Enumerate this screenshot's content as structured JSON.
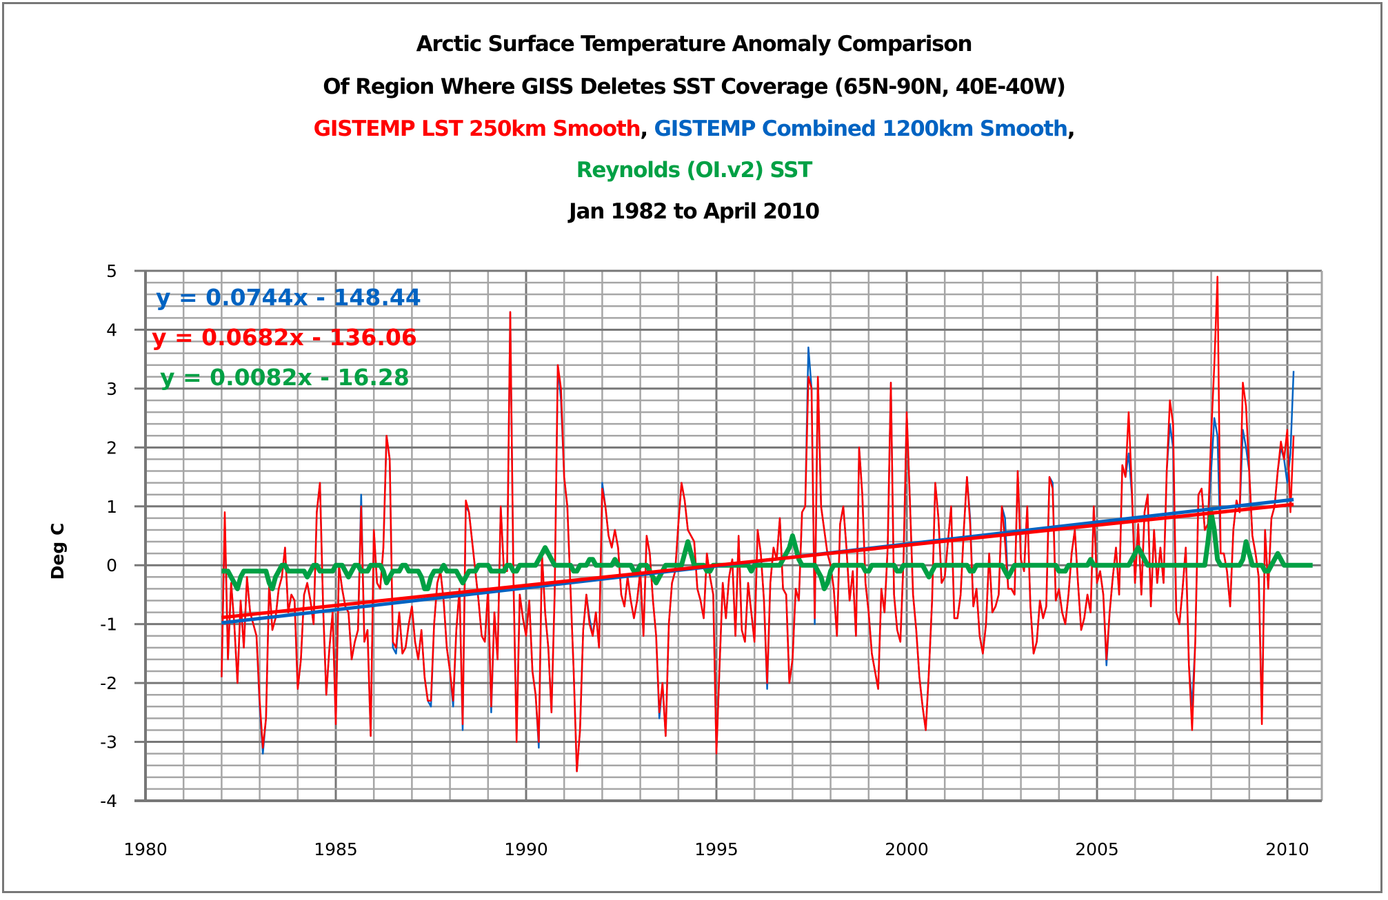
{
  "chart_data": {
    "type": "line",
    "title_lines": [
      {
        "segments": [
          {
            "text": "Arctic Surface Temperature Anomaly Comparison",
            "color": "#000000"
          }
        ]
      },
      {
        "segments": [
          {
            "text": "Of Region Where GISS Deletes SST Coverage (65N-90N, 40E-40W)",
            "color": "#000000"
          }
        ]
      },
      {
        "segments": [
          {
            "text": "GISTEMP LST 250km Smooth",
            "color": "#FF0000"
          },
          {
            "text": ", ",
            "color": "#000000"
          },
          {
            "text": "GISTEMP Combined 1200km Smooth",
            "color": "#0063C2"
          },
          {
            "text": ",",
            "color": "#000000"
          }
        ]
      },
      {
        "segments": [
          {
            "text": "Reynolds (OI.v2) SST",
            "color": "#00A044"
          }
        ]
      },
      {
        "segments": [
          {
            "text": "Jan 1982 to April 2010",
            "color": "#000000"
          }
        ]
      }
    ],
    "xlabel": "",
    "ylabel": "Deg C",
    "xlim": [
      1980,
      2011.2
    ],
    "ylim": [
      -4,
      5
    ],
    "x_ticks": [
      1980,
      1985,
      1990,
      1995,
      2000,
      2005,
      2010
    ],
    "x_tick_labels": [
      "1980",
      "1985",
      "1990",
      "1995",
      "2000",
      "2005",
      "2010"
    ],
    "y_ticks": [
      -4,
      -3,
      -2,
      -1,
      0,
      1,
      2,
      3,
      4,
      5
    ],
    "y_tick_labels": [
      "-4",
      "-3",
      "-2",
      "-1",
      "0",
      "1",
      "2",
      "3",
      "4",
      "5"
    ],
    "grid": true,
    "grid_minor_x_step": 1,
    "grid_minor_y_step": 0.2,
    "legend": "none",
    "x_start": 1982.0,
    "x_step": 0.08333,
    "series": [
      {
        "name": "GISTEMP Combined 1200km Smooth",
        "color": "#0063C2",
        "values": [
          -1.9,
          0.8,
          -1.6,
          -0.3,
          -1.0,
          -2.0,
          -0.6,
          -1.4,
          -0.2,
          -0.8,
          -1.0,
          -1.2,
          -2.4,
          -3.2,
          -2.6,
          -0.3,
          -1.1,
          -0.9,
          -0.4,
          -0.2,
          0.3,
          -0.8,
          -0.5,
          -0.6,
          -2.1,
          -1.6,
          -0.5,
          -0.3,
          -0.6,
          -1.0,
          0.9,
          1.4,
          -0.7,
          -2.2,
          -1.4,
          -0.8,
          -2.7,
          0.0,
          -0.4,
          -0.7,
          -0.8,
          -1.6,
          -1.3,
          -1.1,
          1.2,
          -1.3,
          -1.1,
          -2.9,
          0.6,
          -0.3,
          -0.4,
          0.3,
          2.2,
          1.8,
          -1.4,
          -1.5,
          -0.8,
          -1.5,
          -1.4,
          -1.0,
          -0.7,
          -1.3,
          -1.6,
          -1.1,
          -1.9,
          -2.3,
          -2.4,
          -1.0,
          -0.3,
          -0.1,
          -0.6,
          -1.4,
          -1.8,
          -2.4,
          -1.1,
          -0.4,
          -2.8,
          1.0,
          0.9,
          0.4,
          -0.1,
          -0.6,
          -1.2,
          -1.3,
          -0.4,
          -2.5,
          -0.8,
          -1.6,
          1.0,
          -0.1,
          -0.1,
          4.3,
          -0.2,
          -2.9,
          -0.5,
          -0.9,
          -1.2,
          -0.6,
          -1.8,
          -2.2,
          -3.1,
          0.2,
          -0.8,
          -1.4,
          -2.5,
          -0.5,
          3.4,
          2.8,
          1.5,
          1.0,
          -0.4,
          -1.8,
          -3.5,
          -2.8,
          -1.1,
          -0.5,
          -0.9,
          -1.2,
          -0.8,
          -1.4,
          1.4,
          1.0,
          0.5,
          0.3,
          0.6,
          0.3,
          -0.5,
          -0.7,
          -0.2,
          -0.6,
          -0.9,
          -0.6,
          -0.1,
          -1.2,
          0.5,
          0.2,
          -0.6,
          -1.2,
          -2.6,
          -2.0,
          -2.9,
          -1.0,
          -0.3,
          -0.1,
          0.7,
          1.4,
          1.1,
          0.6,
          0.5,
          0.4,
          -0.4,
          -0.6,
          -0.9,
          0.2,
          -0.2,
          -0.5,
          -3.2,
          -1.7,
          -0.3,
          -0.9,
          -0.2,
          0.1,
          -1.2,
          0.5,
          -1.1,
          -1.3,
          -0.3,
          -0.8,
          -1.3,
          0.6,
          0.2,
          -0.6,
          -2.1,
          -0.3,
          0.3,
          0.1,
          0.8,
          -0.4,
          -0.5,
          -2.0,
          -1.6,
          -0.4,
          -0.6,
          0.9,
          1.0,
          3.7,
          3.0,
          -1.0,
          3.2,
          1.0,
          0.6,
          0.2,
          0.0,
          -0.4,
          -1.2,
          0.7,
          1.0,
          0.3,
          -0.6,
          -0.1,
          -1.2,
          2.0,
          1.2,
          -0.3,
          -0.8,
          -1.5,
          -1.8,
          -2.1,
          -0.4,
          -0.8,
          0.3,
          3.1,
          -0.5,
          -1.1,
          -1.3,
          0.1,
          2.6,
          1.1,
          -0.5,
          -1.1,
          -1.9,
          -2.4,
          -2.8,
          -1.8,
          -0.6,
          1.4,
          0.8,
          -0.3,
          -0.2,
          0.4,
          1.0,
          -0.9,
          -0.9,
          -0.5,
          0.6,
          1.5,
          0.8,
          -0.7,
          -0.4,
          -1.2,
          -1.5,
          -1.0,
          0.2,
          -0.8,
          -0.7,
          -0.5,
          1.0,
          0.8,
          -0.4,
          -0.4,
          -0.5,
          1.6,
          0.1,
          -0.1,
          1.0,
          -0.7,
          -1.5,
          -1.3,
          -0.6,
          -0.9,
          -0.7,
          1.5,
          1.4,
          -0.6,
          -0.4,
          -0.8,
          -1.0,
          -0.5,
          0.2,
          0.6,
          -0.3,
          -1.1,
          -0.9,
          -0.5,
          -0.8,
          1.0,
          -0.3,
          -0.1,
          -0.5,
          -1.7,
          -0.8,
          -0.2,
          0.3,
          -0.5,
          1.7,
          1.5,
          1.9,
          1.2,
          -0.3,
          0.7,
          -0.5,
          0.9,
          1.2,
          -0.7,
          0.6,
          -0.3,
          0.3,
          -0.3,
          1.6,
          2.4,
          2.0,
          -0.8,
          -1.0,
          -0.4,
          0.3,
          -1.7,
          -2.4,
          -1.3,
          1.2,
          1.3,
          0.6,
          0.7,
          1.6,
          2.5,
          2.2,
          0.2,
          0.2,
          -0.1,
          -0.7,
          0.6,
          1.1,
          0.9,
          2.3,
          2.0,
          1.6,
          0.5,
          0.2,
          -0.2,
          -2.6,
          0.6,
          -0.4,
          0.8,
          1.0,
          1.6,
          2.0,
          1.8,
          1.4,
          1.9,
          3.3
        ]
      },
      {
        "name": "GISTEMP LST 250km Smooth",
        "color": "#FF0000",
        "values": [
          -1.9,
          0.9,
          -1.6,
          -0.3,
          -1.0,
          -2.0,
          -0.6,
          -1.4,
          -0.2,
          -0.8,
          -1.0,
          -1.2,
          -2.3,
          -3.1,
          -2.6,
          -0.3,
          -1.1,
          -0.9,
          -0.4,
          -0.2,
          0.3,
          -0.8,
          -0.5,
          -0.6,
          -2.1,
          -1.6,
          -0.5,
          -0.3,
          -0.6,
          -1.0,
          0.9,
          1.4,
          -0.7,
          -2.2,
          -1.4,
          -0.8,
          -2.7,
          0.0,
          -0.4,
          -0.7,
          -0.8,
          -1.6,
          -1.3,
          -1.1,
          1.0,
          -1.3,
          -1.1,
          -2.9,
          0.6,
          -0.3,
          -0.4,
          0.3,
          2.2,
          1.8,
          -1.3,
          -1.4,
          -0.8,
          -1.5,
          -1.4,
          -1.0,
          -0.7,
          -1.3,
          -1.6,
          -1.1,
          -1.9,
          -2.3,
          -2.3,
          -1.0,
          -0.3,
          -0.1,
          -0.6,
          -1.4,
          -1.8,
          -2.3,
          -1.1,
          -0.4,
          -2.7,
          1.1,
          0.9,
          0.4,
          -0.1,
          -0.6,
          -1.2,
          -1.3,
          -0.4,
          -2.4,
          -0.8,
          -1.6,
          1.0,
          -0.1,
          -0.1,
          4.3,
          -0.2,
          -3.0,
          -0.5,
          -0.9,
          -1.2,
          -0.6,
          -1.8,
          -2.2,
          -3.0,
          0.2,
          -0.8,
          -1.4,
          -2.5,
          -0.5,
          3.4,
          3.0,
          1.5,
          1.0,
          -0.4,
          -1.8,
          -3.5,
          -2.8,
          -1.1,
          -0.5,
          -1.0,
          -1.2,
          -0.8,
          -1.4,
          1.3,
          1.0,
          0.5,
          0.3,
          0.6,
          0.3,
          -0.5,
          -0.7,
          -0.2,
          -0.6,
          -0.9,
          -0.6,
          -0.1,
          -1.2,
          0.5,
          0.2,
          -0.6,
          -1.2,
          -2.5,
          -2.0,
          -2.9,
          -1.0,
          -0.3,
          -0.1,
          0.7,
          1.4,
          1.1,
          0.6,
          0.5,
          0.4,
          -0.4,
          -0.6,
          -0.9,
          0.2,
          -0.2,
          -0.5,
          -3.2,
          -1.7,
          -0.3,
          -0.9,
          -0.2,
          0.1,
          -1.2,
          0.5,
          -1.1,
          -1.3,
          -0.3,
          -0.8,
          -1.3,
          0.6,
          0.2,
          -0.6,
          -2.0,
          -0.3,
          0.3,
          0.1,
          0.8,
          -0.4,
          -0.5,
          -2.0,
          -1.6,
          -0.4,
          -0.6,
          0.9,
          1.0,
          3.2,
          3.0,
          -0.9,
          3.2,
          1.0,
          0.6,
          0.2,
          0.0,
          -0.4,
          -1.2,
          0.7,
          1.0,
          0.3,
          -0.6,
          -0.1,
          -1.2,
          2.0,
          1.2,
          -0.3,
          -0.8,
          -1.5,
          -1.8,
          -2.1,
          -0.4,
          -0.8,
          0.3,
          3.1,
          -0.5,
          -1.1,
          -1.3,
          0.1,
          2.6,
          1.1,
          -0.5,
          -1.1,
          -1.9,
          -2.4,
          -2.8,
          -1.8,
          -0.6,
          1.4,
          0.8,
          -0.3,
          -0.2,
          0.4,
          1.0,
          -0.9,
          -0.9,
          -0.5,
          0.6,
          1.5,
          0.7,
          -0.7,
          -0.4,
          -1.2,
          -1.5,
          -1.0,
          0.2,
          -0.8,
          -0.7,
          -0.5,
          1.0,
          0.4,
          -0.4,
          -0.4,
          -0.5,
          1.6,
          0.1,
          -0.1,
          1.0,
          -0.7,
          -1.5,
          -1.3,
          -0.6,
          -0.9,
          -0.7,
          1.5,
          1.3,
          -0.6,
          -0.4,
          -0.8,
          -1.0,
          -0.5,
          0.2,
          0.6,
          -0.3,
          -1.1,
          -0.9,
          -0.5,
          -0.8,
          1.0,
          -0.3,
          -0.1,
          -0.5,
          -1.6,
          -0.8,
          -0.2,
          0.3,
          -0.5,
          1.7,
          1.5,
          2.6,
          1.3,
          -0.3,
          0.7,
          -0.5,
          0.9,
          1.2,
          -0.7,
          0.6,
          -0.3,
          0.3,
          -0.3,
          1.6,
          2.8,
          2.4,
          -0.8,
          -1.0,
          -0.4,
          0.3,
          -1.7,
          -2.8,
          -1.3,
          1.2,
          1.3,
          0.6,
          0.7,
          2.2,
          3.4,
          4.9,
          0.2,
          0.2,
          -0.1,
          -0.7,
          0.6,
          1.1,
          0.9,
          3.1,
          2.7,
          1.6,
          0.5,
          0.2,
          -0.2,
          -2.7,
          0.6,
          -0.4,
          0.8,
          1.0,
          1.6,
          2.1,
          1.8,
          2.3,
          0.9,
          2.2
        ]
      },
      {
        "name": "Reynolds (OI.v2) SST",
        "color": "#00A044",
        "values": [
          -0.1,
          -0.1,
          -0.1,
          -0.2,
          -0.3,
          -0.4,
          -0.2,
          -0.1,
          -0.1,
          -0.1,
          -0.1,
          -0.1,
          -0.1,
          -0.1,
          -0.1,
          -0.3,
          -0.4,
          -0.2,
          -0.1,
          0.0,
          0.0,
          -0.1,
          -0.1,
          -0.1,
          -0.1,
          -0.1,
          -0.1,
          -0.2,
          -0.1,
          0.0,
          0.0,
          -0.1,
          -0.1,
          -0.1,
          -0.1,
          -0.1,
          0.0,
          0.0,
          0.0,
          -0.1,
          -0.2,
          -0.1,
          0.0,
          0.0,
          -0.1,
          -0.1,
          -0.1,
          0.0,
          0.0,
          0.0,
          0.0,
          -0.1,
          -0.3,
          -0.2,
          -0.1,
          -0.1,
          -0.1,
          0.0,
          0.0,
          -0.1,
          -0.1,
          -0.1,
          -0.1,
          -0.2,
          -0.4,
          -0.4,
          -0.2,
          -0.1,
          -0.1,
          -0.1,
          0.0,
          -0.1,
          -0.1,
          -0.1,
          -0.1,
          -0.2,
          -0.3,
          -0.2,
          -0.1,
          -0.1,
          -0.1,
          0.0,
          0.0,
          0.0,
          0.0,
          -0.1,
          -0.1,
          -0.1,
          -0.1,
          -0.1,
          0.0,
          0.0,
          -0.1,
          -0.1,
          0.0,
          0.0,
          0.0,
          0.0,
          0.0,
          0.0,
          0.1,
          0.2,
          0.3,
          0.2,
          0.1,
          0.0,
          0.0,
          0.0,
          0.0,
          0.0,
          0.0,
          -0.1,
          -0.1,
          0.0,
          0.0,
          0.0,
          0.1,
          0.1,
          0.0,
          0.0,
          0.0,
          0.0,
          0.0,
          0.0,
          0.1,
          0.0,
          0.0,
          0.0,
          0.0,
          0.0,
          -0.1,
          -0.1,
          0.0,
          0.0,
          0.0,
          -0.1,
          -0.2,
          -0.3,
          -0.2,
          -0.1,
          0.0,
          0.0,
          0.0,
          0.0,
          0.0,
          0.0,
          0.2,
          0.4,
          0.2,
          0.0,
          0.0,
          0.0,
          0.0,
          -0.1,
          -0.1,
          0.0,
          0.0,
          0.0,
          0.0,
          0.0,
          0.0,
          0.0,
          0.0,
          0.0,
          0.0,
          0.0,
          0.0,
          -0.1,
          0.0,
          0.0,
          0.0,
          0.0,
          0.0,
          0.0,
          0.0,
          0.0,
          0.0,
          0.1,
          0.2,
          0.3,
          0.5,
          0.3,
          0.1,
          0.0,
          0.0,
          0.0,
          0.0,
          0.0,
          -0.1,
          -0.2,
          -0.4,
          -0.3,
          -0.1,
          0.0,
          0.0,
          0.0,
          0.0,
          0.0,
          0.0,
          0.0,
          0.0,
          0.0,
          0.0,
          -0.1,
          -0.1,
          0.0,
          0.0,
          0.0,
          0.0,
          0.0,
          0.0,
          0.0,
          0.0,
          -0.1,
          -0.1,
          0.0,
          0.0,
          0.0,
          0.0,
          0.0,
          0.0,
          0.0,
          -0.1,
          -0.2,
          -0.1,
          0.0,
          0.0,
          0.0,
          0.0,
          0.0,
          0.0,
          0.0,
          0.0,
          0.0,
          0.0,
          0.0,
          -0.1,
          -0.1,
          0.0,
          0.0,
          0.0,
          0.0,
          0.0,
          0.0,
          0.0,
          0.0,
          0.0,
          -0.1,
          -0.2,
          -0.1,
          0.0,
          0.0,
          0.0,
          0.0,
          0.0,
          0.0,
          0.0,
          0.0,
          0.0,
          0.0,
          0.0,
          0.0,
          0.0,
          0.0,
          -0.1,
          -0.1,
          -0.1,
          0.0,
          0.0,
          0.0,
          0.0,
          0.0,
          0.0,
          0.0,
          0.1,
          0.0,
          0.0,
          0.0,
          0.0,
          0.0,
          0.0,
          0.0,
          0.0,
          0.0,
          0.0,
          0.0,
          0.0,
          0.1,
          0.2,
          0.3,
          0.2,
          0.1,
          0.0,
          0.0,
          0.0,
          0.0,
          0.0,
          0.0,
          0.0,
          0.0,
          0.0,
          0.0,
          0.0,
          0.0,
          0.0,
          0.0,
          0.0,
          0.0,
          0.0,
          0.0,
          0.0,
          0.4,
          0.9,
          0.6,
          0.1,
          0.0,
          0.0,
          0.0,
          0.0,
          0.0,
          0.0,
          0.0,
          0.1,
          0.4,
          0.2,
          0.0,
          0.0,
          0.0,
          0.0,
          -0.1,
          -0.1,
          0.0,
          0.1,
          0.2,
          0.1,
          0.0,
          0.0,
          0.0,
          0.0,
          0.0,
          0.0,
          0.0,
          0.0,
          0.0,
          0.0
        ]
      }
    ],
    "trendlines": [
      {
        "series": "GISTEMP Combined 1200km Smooth",
        "color": "#0063C2",
        "slope": 0.0744,
        "intercept": -148.44,
        "label": "y = 0.0744x - 148.44"
      },
      {
        "series": "GISTEMP LST 250km Smooth",
        "color": "#FF0000",
        "slope": 0.0682,
        "intercept": -136.06,
        "label": "y = 0.0682x - 136.06"
      },
      {
        "series": "Reynolds (OI.v2) SST",
        "color": "#00A044",
        "slope": 0.0082,
        "intercept": -16.28,
        "label": "y = 0.0082x - 16.28"
      }
    ]
  }
}
